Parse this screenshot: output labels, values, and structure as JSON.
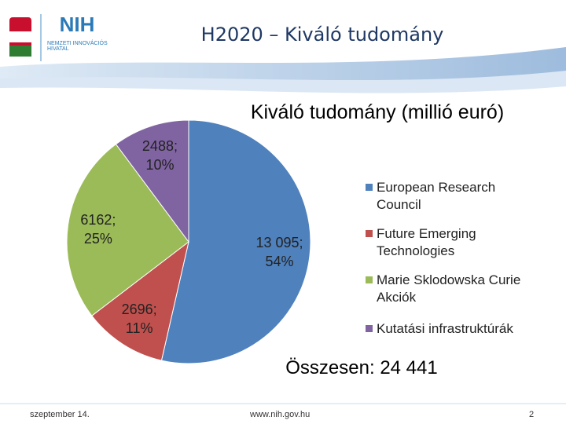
{
  "slide": {
    "title": "H2020 – Kiváló tudomány",
    "logo_text": "NIH",
    "logo_subtitle": "NEMZETI INNOVÁCIÓS HIVATAL",
    "total": "Összesen: 24 441",
    "footer_date": "szeptember 14.",
    "footer_url": "www.nih.gov.hu",
    "page_number": "2"
  },
  "chart_data": {
    "type": "pie",
    "title": "Kiváló tudomány (millió euró)",
    "categories": [
      "European Research Council",
      "Future Emerging Technologies",
      "Marie Sklodowska Curie Akciók",
      "Kutatási infrastruktúrák"
    ],
    "values": [
      13095,
      2696,
      6162,
      2488
    ],
    "value_labels": [
      "13 095; 54%",
      "2696; 11%",
      "6162; 25%",
      "2488; 10%"
    ],
    "colors": [
      "#4f81bd",
      "#c0504d",
      "#9bbb59",
      "#8064a2"
    ],
    "legend": "right"
  }
}
